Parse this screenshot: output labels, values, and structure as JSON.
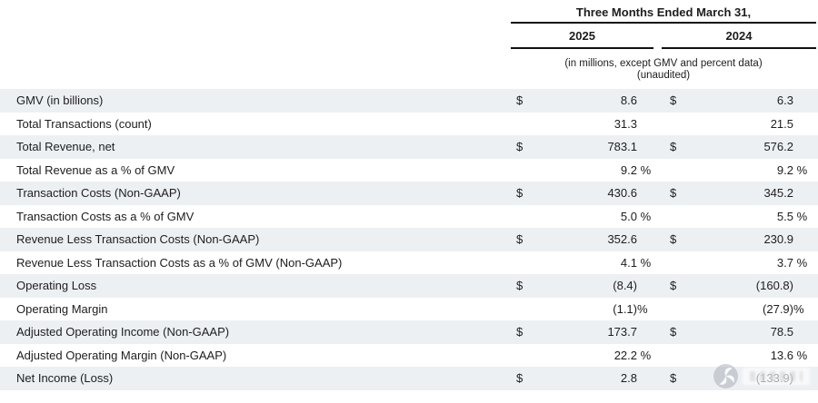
{
  "header": {
    "period_title": "Three Months Ended March 31,",
    "years": [
      "2025",
      "2024"
    ],
    "note_line1": "(in millions, except GMV and percent data)",
    "note_line2": "(unaudited)"
  },
  "table": {
    "rows": [
      {
        "label": "GMV (in billions)",
        "shaded": true,
        "y2025": {
          "cur": "$",
          "num": "8.6",
          "suf": ""
        },
        "y2024": {
          "cur": "$",
          "num": "6.3",
          "suf": ""
        }
      },
      {
        "label": "Total Transactions (count)",
        "shaded": false,
        "y2025": {
          "cur": "",
          "num": "31.3",
          "suf": ""
        },
        "y2024": {
          "cur": "",
          "num": "21.5",
          "suf": ""
        }
      },
      {
        "label": "Total Revenue, net",
        "shaded": true,
        "y2025": {
          "cur": "$",
          "num": "783.1",
          "suf": ""
        },
        "y2024": {
          "cur": "$",
          "num": "576.2",
          "suf": ""
        }
      },
      {
        "label": "Total Revenue as a % of GMV",
        "shaded": false,
        "y2025": {
          "cur": "",
          "num": "9.2",
          "suf": " %"
        },
        "y2024": {
          "cur": "",
          "num": "9.2",
          "suf": " %"
        }
      },
      {
        "label": "Transaction Costs (Non-GAAP)",
        "shaded": true,
        "y2025": {
          "cur": "$",
          "num": "430.6",
          "suf": ""
        },
        "y2024": {
          "cur": "$",
          "num": "345.2",
          "suf": ""
        }
      },
      {
        "label": "Transaction Costs as a % of GMV",
        "shaded": false,
        "y2025": {
          "cur": "",
          "num": "5.0",
          "suf": " %"
        },
        "y2024": {
          "cur": "",
          "num": "5.5",
          "suf": " %"
        }
      },
      {
        "label": "Revenue Less Transaction Costs (Non-GAAP)",
        "shaded": true,
        "y2025": {
          "cur": "$",
          "num": "352.6",
          "suf": ""
        },
        "y2024": {
          "cur": "$",
          "num": "230.9",
          "suf": ""
        }
      },
      {
        "label": "Revenue Less Transaction Costs as a % of GMV (Non-GAAP)",
        "shaded": false,
        "y2025": {
          "cur": "",
          "num": "4.1",
          "suf": " %"
        },
        "y2024": {
          "cur": "",
          "num": "3.7",
          "suf": " %"
        }
      },
      {
        "label": "Operating Loss",
        "shaded": true,
        "y2025": {
          "cur": "$",
          "num": "(8.4)",
          "suf": ""
        },
        "y2024": {
          "cur": "$",
          "num": "(160.8)",
          "suf": ""
        }
      },
      {
        "label": "Operating Margin",
        "shaded": false,
        "y2025": {
          "cur": "",
          "num": "(1.1)",
          "suf": "%"
        },
        "y2024": {
          "cur": "",
          "num": "(27.9)",
          "suf": "%"
        }
      },
      {
        "label": "Adjusted Operating Income (Non-GAAP)",
        "shaded": true,
        "y2025": {
          "cur": "$",
          "num": "173.7",
          "suf": ""
        },
        "y2024": {
          "cur": "$",
          "num": "78.5",
          "suf": ""
        }
      },
      {
        "label": "Adjusted Operating Margin (Non-GAAP)",
        "shaded": false,
        "y2025": {
          "cur": "",
          "num": "22.2",
          "suf": " %"
        },
        "y2024": {
          "cur": "",
          "num": "13.6",
          "suf": " %"
        }
      },
      {
        "label": "Net Income (Loss)",
        "shaded": true,
        "y2025": {
          "cur": "$",
          "num": "2.8",
          "suf": ""
        },
        "y2024": {
          "cur": "$",
          "num": "(133.9)",
          "suf": ""
        }
      }
    ]
  },
  "watermark": {
    "icon": "watermark-logo"
  },
  "colors": {
    "row_shade": "#edf0f3",
    "rule": "#111111",
    "text": "#1d1d1f",
    "background": "#ffffff"
  }
}
